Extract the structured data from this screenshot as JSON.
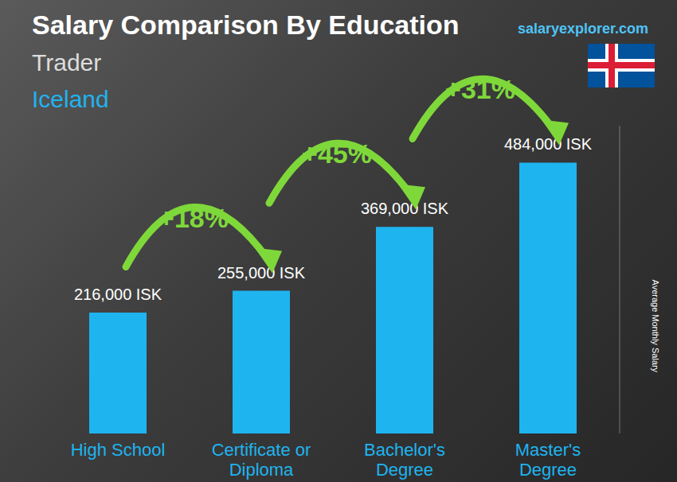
{
  "chart_data": {
    "type": "bar",
    "title": "Salary Comparison By Education",
    "subtitle": [
      "Trader",
      "Iceland"
    ],
    "source": "salaryexplorer.com",
    "y_label": "Average Monthly Salary",
    "categories": [
      "High School",
      "Certificate or Diploma",
      "Bachelor's Degree",
      "Master's Degree"
    ],
    "values": [
      216000,
      255000,
      369000,
      484000
    ],
    "value_labels": [
      "216,000 ISK",
      "255,000 ISK",
      "369,000 ISK",
      "484,000 ISK"
    ],
    "annotations": [
      "+18%",
      "+45%",
      "+31%"
    ],
    "color": "#1eb4f0",
    "ylim": [
      0,
      550000
    ],
    "tick_labels": "x",
    "data_labels": true,
    "grid": false
  }
}
